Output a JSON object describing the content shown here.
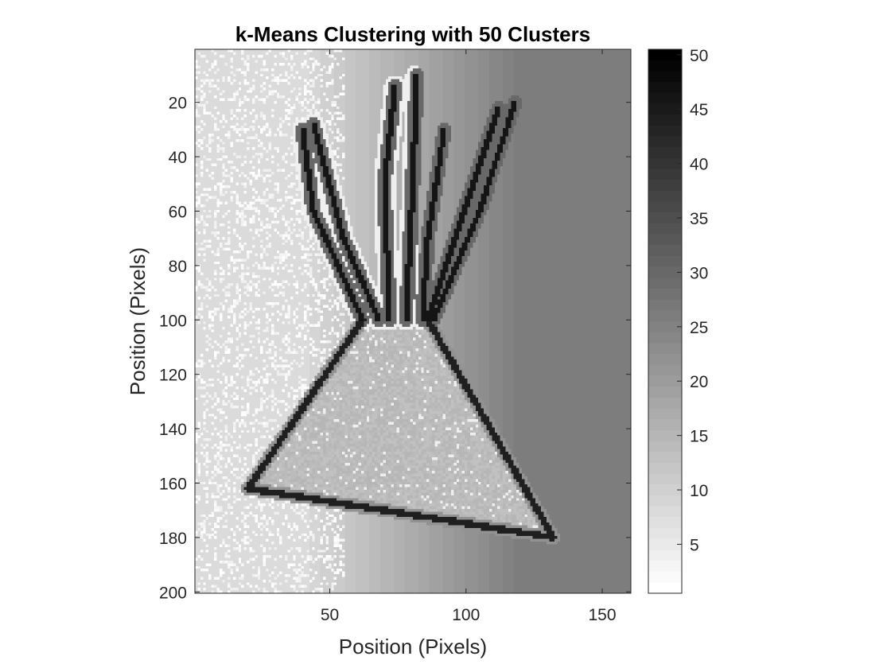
{
  "chart_data": {
    "type": "heatmap",
    "title": "k-Means Clustering with 50 Clusters",
    "xlabel": "Position (Pixels)",
    "ylabel": "Position (Pixels)",
    "xlim": [
      0.5,
      160.5
    ],
    "ylim": [
      0.5,
      200.5
    ],
    "y_direction": "reverse",
    "x_ticks": [
      50,
      100,
      150
    ],
    "y_ticks": [
      20,
      40,
      60,
      80,
      100,
      120,
      140,
      160,
      180,
      200
    ],
    "colorbar": {
      "colormap": "gray-reversed",
      "min": 1,
      "max": 50,
      "ticks": [
        5,
        10,
        15,
        20,
        25,
        30,
        35,
        40,
        45,
        50
      ]
    },
    "description_regions": {
      "background_left_value": 8,
      "background_right_value": 26,
      "triangle_fill_value": 14,
      "edge_value": 44
    }
  }
}
